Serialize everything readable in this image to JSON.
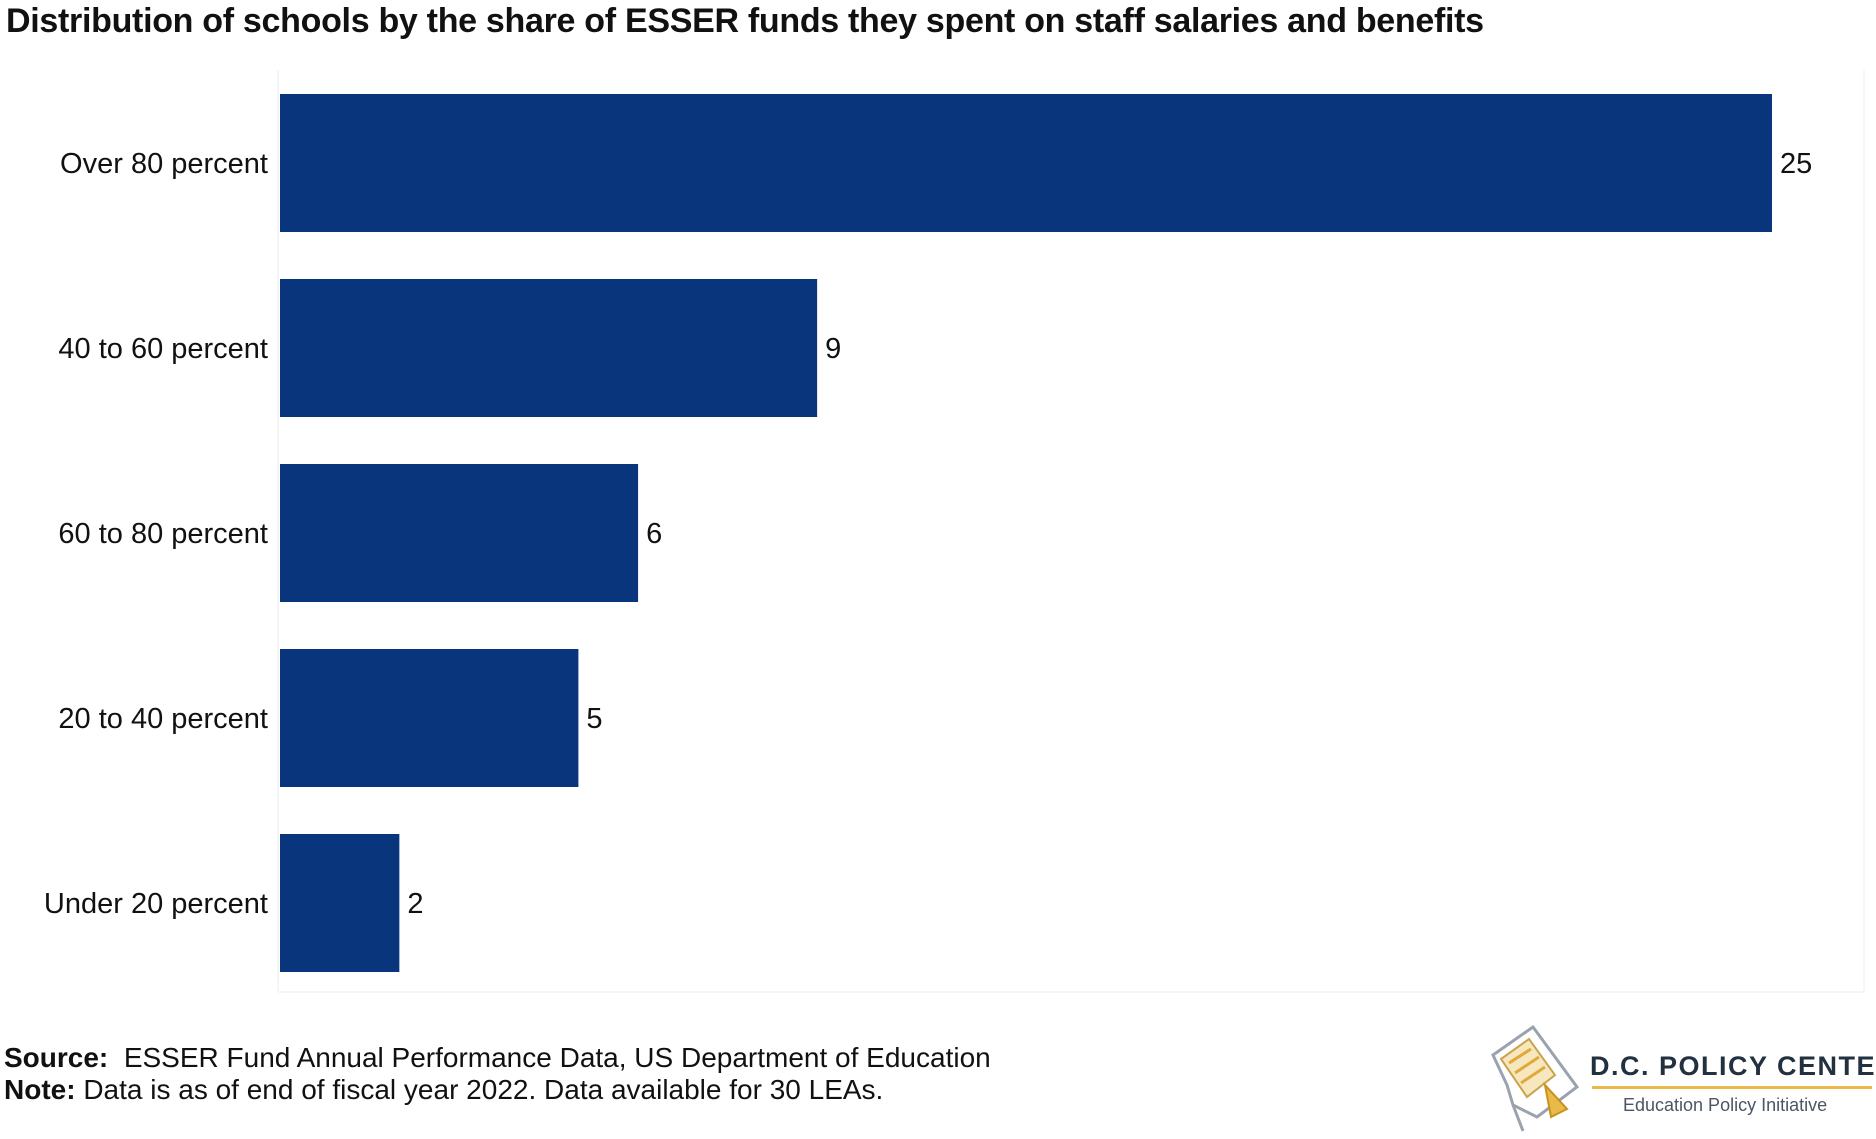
{
  "chart_data": {
    "type": "bar",
    "orientation": "horizontal",
    "title": "Distribution of schools by the share of ESSER funds they spent on staff salaries and benefits",
    "categories": [
      "Over 80 percent",
      "40 to 60 percent",
      "60 to 80 percent",
      "20 to 40 percent",
      "Under 20 percent"
    ],
    "values": [
      25,
      9,
      6,
      5,
      2
    ],
    "xlim": [
      0,
      25
    ],
    "grid": false,
    "legend": "none",
    "bar_color": "#08357c"
  },
  "footer": {
    "source_label": "Source:",
    "source_text": "ESSER Fund Annual Performance Data, US Department of Education",
    "note_label": "Note:",
    "note_text": "Data is as of end of fiscal year 2022. Data available for 30 LEAs."
  },
  "logo": {
    "name": "D.C. POLICY CENTER",
    "subtitle": "Education Policy Initiative"
  }
}
